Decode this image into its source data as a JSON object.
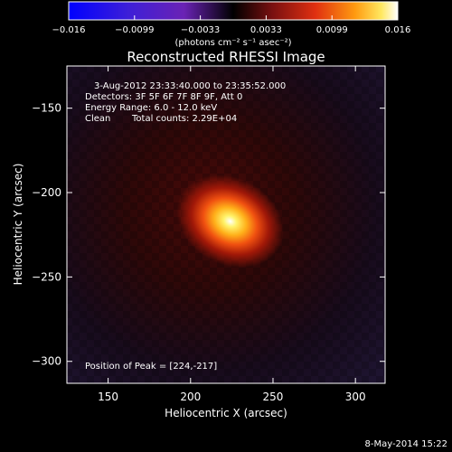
{
  "chart_data": {
    "type": "heatmap",
    "title": "Reconstructed RHESSI Image",
    "xlabel": "Heliocentric X (arcsec)",
    "ylabel": "Heliocentric Y (arcsec)",
    "xlim": [
      125,
      318
    ],
    "ylim": [
      -313,
      -125
    ],
    "x_ticks": [
      150,
      200,
      250,
      300
    ],
    "y_ticks": [
      -150,
      -200,
      -250,
      -300
    ],
    "colorbar": {
      "range": [
        -0.016,
        0.016
      ],
      "ticks": [
        "-0.016",
        "-0.0099",
        "-0.0033",
        "0.0033",
        "0.0099",
        "0.016"
      ],
      "units_label": "(photons cm⁻² s⁻¹ asec⁻²)"
    },
    "annotations": {
      "time": "3-Aug-2012 23:33:40.000 to 23:35:52.000",
      "detectors": "Detectors: 3F 5F 6F 7F 8F 9F, Att 0",
      "energy": "Energy Range: 6.0 - 12.0 keV",
      "method": "Clean",
      "counts": "Total counts: 2.29E+04",
      "peak": "Position of Peak = [224,-217]"
    },
    "peak": {
      "x": 224,
      "y": -217,
      "value": 0.016
    },
    "footer_date": "8-May-2014 15:22"
  }
}
